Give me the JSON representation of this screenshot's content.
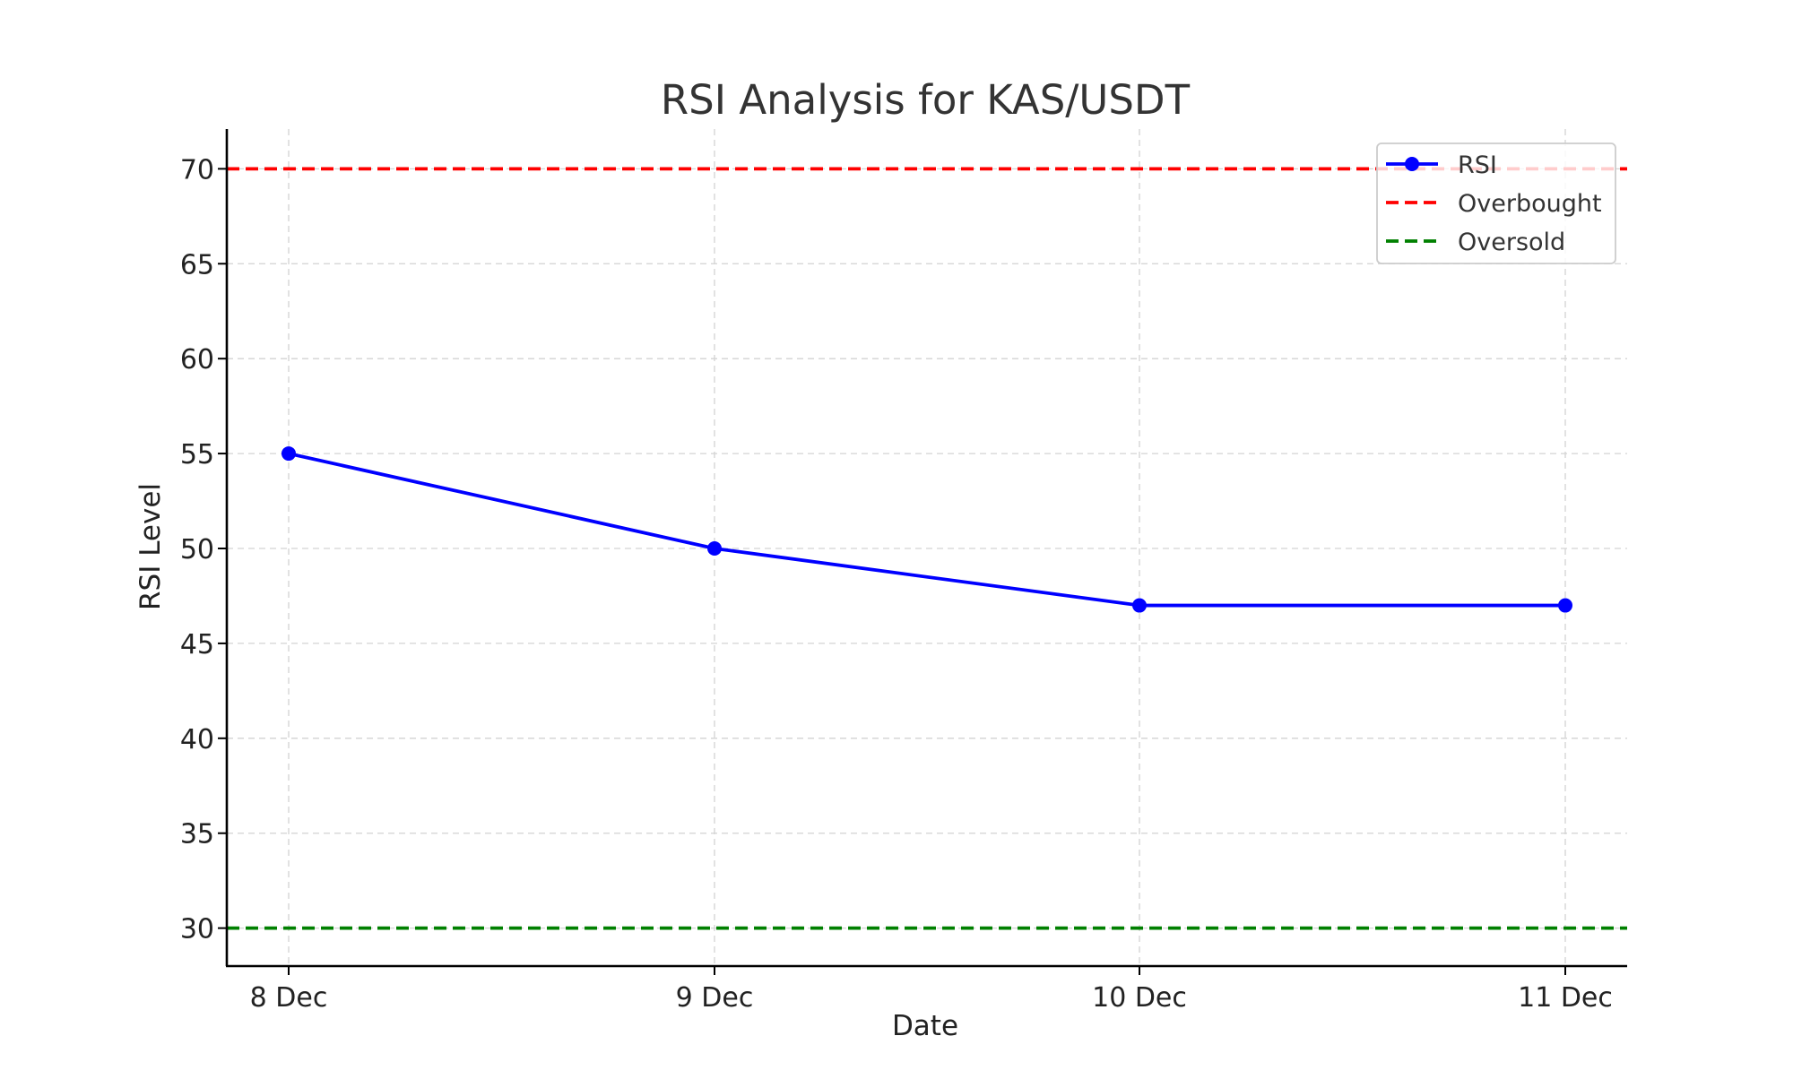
{
  "chart_data": {
    "type": "line",
    "title": "RSI Analysis for KAS/USDT",
    "xlabel": "Date",
    "ylabel": "RSI Level",
    "categories": [
      "8 Dec",
      "9 Dec",
      "10 Dec",
      "11 Dec"
    ],
    "series": [
      {
        "name": "RSI",
        "values": [
          55,
          50,
          47,
          47
        ],
        "color": "#0000ff",
        "style": "solid",
        "marker": "circle"
      }
    ],
    "reference_lines": [
      {
        "name": "Overbought",
        "value": 70,
        "color": "#ff0000",
        "style": "dashed"
      },
      {
        "name": "Oversold",
        "value": 30,
        "color": "#008000",
        "style": "dashed"
      }
    ],
    "ylim": [
      28,
      72
    ],
    "yticks": [
      30,
      35,
      40,
      45,
      50,
      55,
      60,
      65,
      70
    ],
    "grid": true,
    "legend_position": "top-right"
  }
}
